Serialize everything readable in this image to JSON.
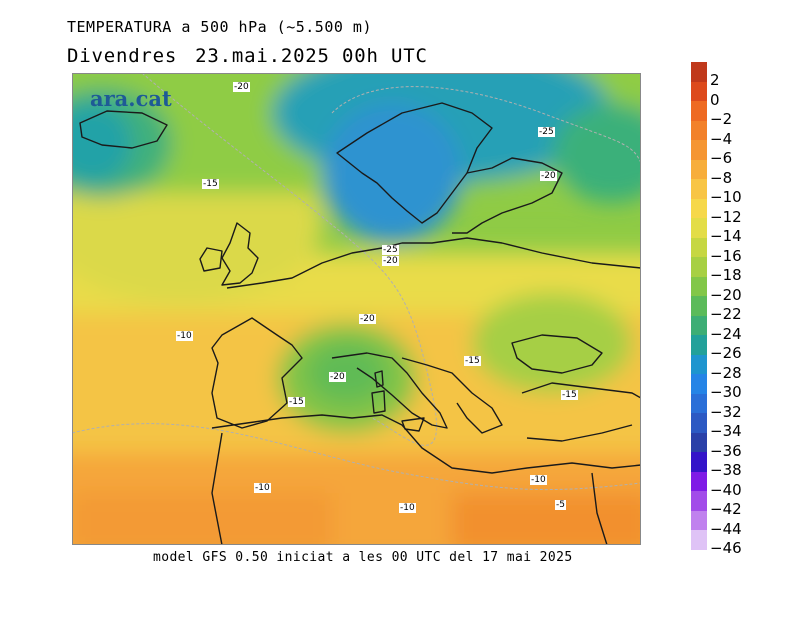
{
  "title": "TEMPERATURA a 500 hPa (~5.500 m)",
  "subtitle": {
    "day": "Divendres",
    "date": "23.mai.2025 00h UTC"
  },
  "footer": "model GFS 0.50 iniciat a les 00 UTC del 17 mai 2025",
  "logo": "ara.cat",
  "contour_labels": {
    "l1": "-20",
    "l2": "-15",
    "l3": "-25",
    "l4": "-20",
    "l5": "-25",
    "l6": "-20",
    "l7": "-10",
    "l8": "-20",
    "l9": "-15",
    "l10": "-20",
    "l11": "-15",
    "l12": "-15",
    "l13": "-10",
    "l14": "-10",
    "l15": "-10",
    "l16": "-5"
  },
  "legend": {
    "labels": [
      "2",
      "0",
      "−2",
      "−4",
      "−6",
      "−8",
      "−10",
      "−12",
      "−14",
      "−16",
      "−18",
      "−20",
      "−22",
      "−24",
      "−26",
      "−28",
      "−30",
      "−32",
      "−34",
      "−36",
      "−38",
      "−40",
      "−42",
      "−44",
      "−46"
    ],
    "colors": [
      "#c0391b",
      "#dd4a1c",
      "#ee6a22",
      "#f2812a",
      "#f59633",
      "#f7ae3b",
      "#f8c545",
      "#f6d84a",
      "#e3dd47",
      "#c6d742",
      "#a7d043",
      "#82c748",
      "#5bbb5a",
      "#3dae75",
      "#22a19a",
      "#1e95cf",
      "#2584e6",
      "#2a6fd8",
      "#2c59c3",
      "#2a40a8",
      "#3414c9",
      "#7f1be6",
      "#a24ce9",
      "#c081ee",
      "#dfc3f6"
    ]
  }
}
